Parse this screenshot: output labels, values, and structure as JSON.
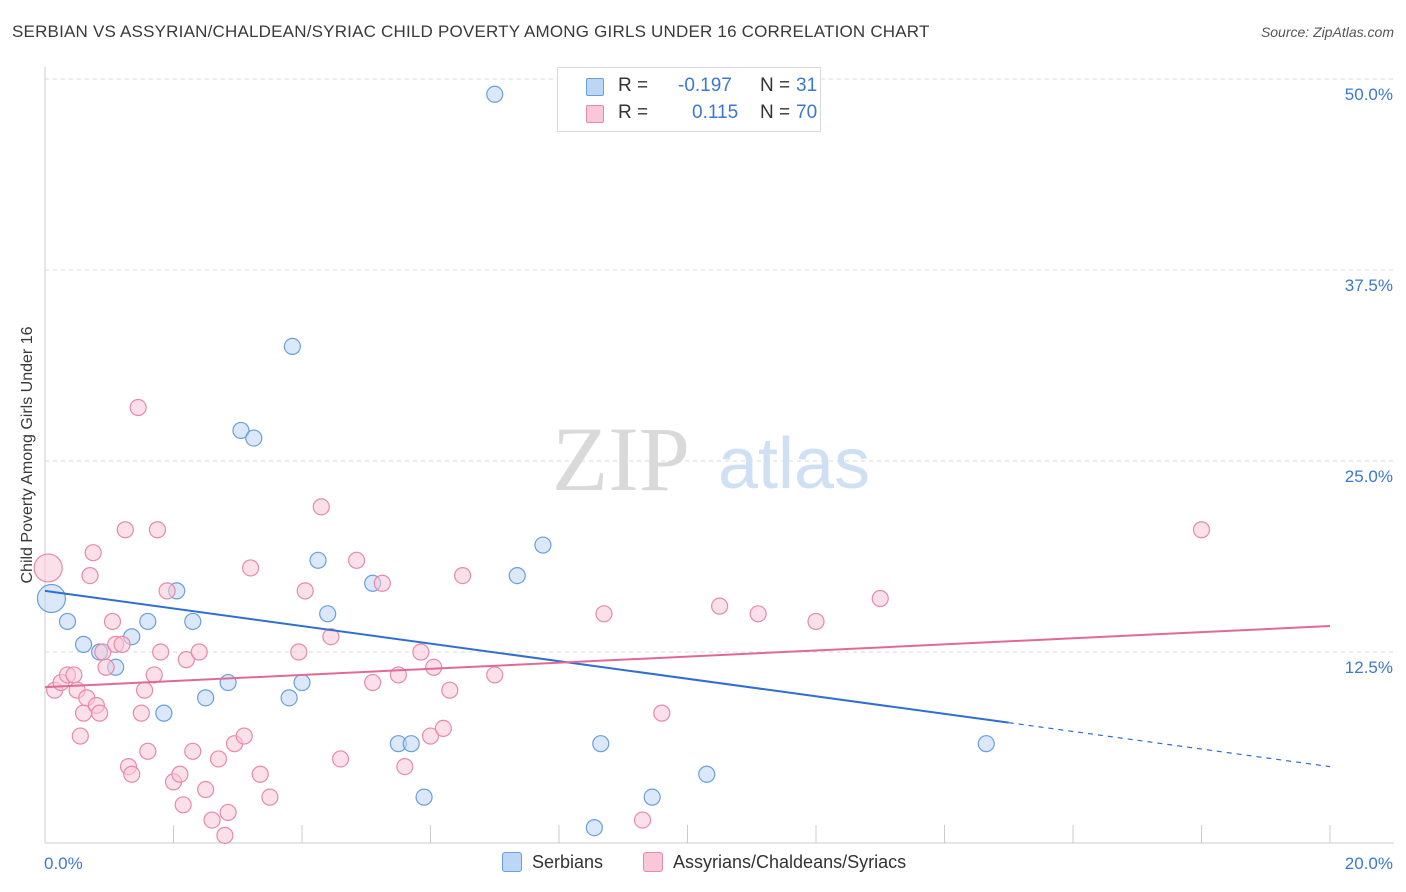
{
  "title": "SERBIAN VS ASSYRIAN/CHALDEAN/SYRIAC CHILD POVERTY AMONG GIRLS UNDER 16 CORRELATION CHART",
  "source": "Source: ZipAtlas.com",
  "watermark": {
    "zip": "ZIP",
    "atlas": "atlas"
  },
  "legend": {
    "r_label": "R =",
    "n_label": "N =",
    "series": [
      {
        "r": "-0.197",
        "n": "31"
      },
      {
        "r": "0.115",
        "n": "70"
      }
    ]
  },
  "colors": {
    "serbian_fill": "#bcd6f5",
    "serbian_stroke": "#6a9fdc",
    "serbian_line": "#2f6fd0",
    "assyrian_fill": "#f9c7d7",
    "assyrian_stroke": "#e68aa8",
    "assyrian_line": "#e06a95",
    "tick_text": "#3b78d0",
    "grid": "#d9d9d9"
  },
  "chart_data": {
    "type": "scatter",
    "title": "SERBIAN VS ASSYRIAN/CHALDEAN/SYRIAC CHILD POVERTY AMONG GIRLS UNDER 16 CORRELATION CHART",
    "xlabel": "",
    "ylabel": "Child Poverty Among Girls Under 16",
    "xlim": [
      0,
      20
    ],
    "ylim": [
      0,
      50
    ],
    "x_tick_labels": [
      "0.0%",
      "20.0%"
    ],
    "y_ticks": [
      12.5,
      25.0,
      37.5,
      50.0
    ],
    "y_tick_labels": [
      "12.5%",
      "25.0%",
      "37.5%",
      "50.0%"
    ],
    "grid": true,
    "legend_position": "top-center",
    "series": [
      {
        "name": "Serbians",
        "points": [
          [
            0.1,
            16.0
          ],
          [
            0.35,
            14.5
          ],
          [
            0.6,
            13.0
          ],
          [
            0.85,
            12.5
          ],
          [
            1.1,
            11.5
          ],
          [
            1.35,
            13.5
          ],
          [
            1.6,
            14.5
          ],
          [
            1.85,
            8.5
          ],
          [
            2.05,
            16.5
          ],
          [
            2.3,
            14.5
          ],
          [
            2.5,
            9.5
          ],
          [
            2.85,
            10.5
          ],
          [
            3.05,
            27.0
          ],
          [
            3.25,
            26.5
          ],
          [
            3.8,
            9.5
          ],
          [
            3.85,
            32.5
          ],
          [
            4.0,
            10.5
          ],
          [
            4.25,
            18.5
          ],
          [
            4.4,
            15.0
          ],
          [
            5.1,
            17.0
          ],
          [
            5.5,
            6.5
          ],
          [
            5.7,
            6.5
          ],
          [
            5.9,
            3.0
          ],
          [
            7.0,
            49.0
          ],
          [
            7.35,
            17.5
          ],
          [
            7.75,
            19.5
          ],
          [
            8.55,
            1.0
          ],
          [
            8.65,
            6.5
          ],
          [
            9.45,
            3.0
          ],
          [
            10.3,
            4.5
          ],
          [
            14.65,
            6.5
          ]
        ],
        "trend": {
          "x_start": 0,
          "y_start": 16.5,
          "x_solid_end": 15.0,
          "x_end": 20,
          "y_end": 5.0
        }
      },
      {
        "name": "Assyrians/Chaldeans/Syriacs",
        "points": [
          [
            0.05,
            18.0
          ],
          [
            0.15,
            10.0
          ],
          [
            0.25,
            10.5
          ],
          [
            0.35,
            11.0
          ],
          [
            0.45,
            11.0
          ],
          [
            0.5,
            10.0
          ],
          [
            0.55,
            7.0
          ],
          [
            0.6,
            8.5
          ],
          [
            0.65,
            9.5
          ],
          [
            0.7,
            17.5
          ],
          [
            0.75,
            19.0
          ],
          [
            0.8,
            9.0
          ],
          [
            0.85,
            8.5
          ],
          [
            0.9,
            12.5
          ],
          [
            0.95,
            11.5
          ],
          [
            1.05,
            14.5
          ],
          [
            1.1,
            13.0
          ],
          [
            1.2,
            13.0
          ],
          [
            1.25,
            20.5
          ],
          [
            1.3,
            5.0
          ],
          [
            1.35,
            4.5
          ],
          [
            1.45,
            28.5
          ],
          [
            1.5,
            8.5
          ],
          [
            1.55,
            10.0
          ],
          [
            1.6,
            6.0
          ],
          [
            1.7,
            11.0
          ],
          [
            1.75,
            20.5
          ],
          [
            1.8,
            12.5
          ],
          [
            1.9,
            16.5
          ],
          [
            2.0,
            4.0
          ],
          [
            2.1,
            4.5
          ],
          [
            2.15,
            2.5
          ],
          [
            2.2,
            12.0
          ],
          [
            2.3,
            6.0
          ],
          [
            2.4,
            12.5
          ],
          [
            2.5,
            3.5
          ],
          [
            2.6,
            1.5
          ],
          [
            2.7,
            5.5
          ],
          [
            2.8,
            0.5
          ],
          [
            2.85,
            2.0
          ],
          [
            2.95,
            6.5
          ],
          [
            3.1,
            7.0
          ],
          [
            3.2,
            18.0
          ],
          [
            3.35,
            4.5
          ],
          [
            3.5,
            3.0
          ],
          [
            3.95,
            12.5
          ],
          [
            4.05,
            16.5
          ],
          [
            4.3,
            22.0
          ],
          [
            4.45,
            13.5
          ],
          [
            4.6,
            5.5
          ],
          [
            4.85,
            18.5
          ],
          [
            5.1,
            10.5
          ],
          [
            5.25,
            17.0
          ],
          [
            5.5,
            11.0
          ],
          [
            5.6,
            5.0
          ],
          [
            5.85,
            12.5
          ],
          [
            6.0,
            7.0
          ],
          [
            6.05,
            11.5
          ],
          [
            6.2,
            7.5
          ],
          [
            6.3,
            10.0
          ],
          [
            6.5,
            17.5
          ],
          [
            7.0,
            11.0
          ],
          [
            8.7,
            15.0
          ],
          [
            9.3,
            1.5
          ],
          [
            9.6,
            8.5
          ],
          [
            10.5,
            15.5
          ],
          [
            11.1,
            15.0
          ],
          [
            12.0,
            14.5
          ],
          [
            13.0,
            16.0
          ],
          [
            18.0,
            20.5
          ]
        ],
        "trend": {
          "x_start": 0,
          "y_start": 10.2,
          "x_end": 20,
          "y_end": 14.2
        }
      }
    ]
  }
}
